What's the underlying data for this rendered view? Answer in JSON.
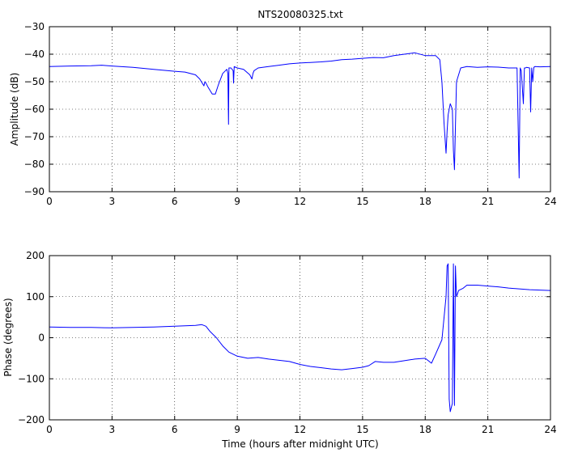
{
  "figure_title": "NTS20080325.txt",
  "line_color": "#0000ff",
  "chart_data": [
    {
      "type": "line",
      "title": "NTS20080325.txt",
      "xlabel": "",
      "ylabel": "Amplitude (dB)",
      "xlim": [
        0,
        24
      ],
      "ylim": [
        -90,
        -30
      ],
      "xticks": [
        0,
        3,
        6,
        9,
        12,
        15,
        18,
        21,
        24
      ],
      "yticks": [
        -90,
        -80,
        -70,
        -60,
        -50,
        -40,
        -30
      ],
      "grid": true,
      "series": [
        {
          "x": [
            0,
            1,
            2,
            2.5,
            3,
            4,
            5,
            6,
            6.5,
            7,
            7.2,
            7.4,
            7.45,
            7.5,
            7.6,
            7.8,
            7.95,
            8.1,
            8.3,
            8.5,
            8.55,
            8.58,
            8.6,
            8.7,
            8.8,
            8.82,
            8.85,
            9.0,
            9.3,
            9.6,
            9.7,
            9.75,
            9.8,
            10,
            10.5,
            11,
            11.5,
            12,
            12.5,
            13,
            13.5,
            14,
            14.5,
            15,
            15.5,
            16,
            16.5,
            17,
            17.5,
            18,
            18.5,
            18.7,
            18.8,
            18.9,
            19.0,
            19.05,
            19.1,
            19.2,
            19.3,
            19.35,
            19.4,
            19.45,
            19.5,
            19.7,
            20,
            20.5,
            21,
            21.5,
            22,
            22.4,
            22.5,
            22.55,
            22.6,
            22.7,
            22.75,
            22.8,
            22.85,
            23.0,
            23.05,
            23.1,
            23.15,
            23.2,
            23.25,
            23.5,
            24
          ],
          "y": [
            -44.5,
            -44.3,
            -44.2,
            -44.0,
            -44.3,
            -44.8,
            -45.5,
            -46.2,
            -46.5,
            -47.5,
            -49,
            -51.5,
            -50,
            -50.5,
            -52,
            -54.5,
            -54.5,
            -51,
            -47,
            -45.5,
            -47,
            -65.5,
            -45,
            -45,
            -46,
            -50.5,
            -44.5,
            -45,
            -45.5,
            -47.5,
            -49,
            -47,
            -46,
            -45,
            -44.5,
            -44,
            -43.5,
            -43.2,
            -43,
            -42.8,
            -42.5,
            -42,
            -41.8,
            -41.5,
            -41.2,
            -41.3,
            -40.5,
            -40,
            -39.5,
            -40.5,
            -40.5,
            -42,
            -50,
            -65,
            -76,
            -68,
            -62,
            -58,
            -60,
            -75,
            -82,
            -66,
            -50,
            -45,
            -44.5,
            -44.8,
            -44.6,
            -44.7,
            -45,
            -45,
            -85,
            -45,
            -46,
            -58,
            -45,
            -45,
            -44.8,
            -45,
            -61,
            -45,
            -50,
            -44.8,
            -44.5,
            -44.6,
            -44.5
          ]
        }
      ]
    },
    {
      "type": "line",
      "title": "",
      "xlabel": "Time (hours after midnight UTC)",
      "ylabel": "Phase (degrees)",
      "xlim": [
        0,
        24
      ],
      "ylim": [
        -200,
        200
      ],
      "xticks": [
        0,
        3,
        6,
        9,
        12,
        15,
        18,
        21,
        24
      ],
      "yticks": [
        -200,
        -100,
        0,
        100,
        200
      ],
      "grid": true,
      "series": [
        {
          "x": [
            0,
            1,
            2,
            3,
            4,
            5,
            6,
            7,
            7.3,
            7.5,
            7.7,
            8.0,
            8.3,
            8.6,
            9.0,
            9.5,
            10,
            10.5,
            11,
            11.5,
            12,
            12.5,
            13,
            13.5,
            14,
            14.5,
            15,
            15.3,
            15.6,
            16,
            16.5,
            17,
            17.5,
            18,
            18.3,
            18.5,
            18.8,
            19.0,
            19.05,
            19.1,
            19.15,
            19.2,
            19.25,
            19.3,
            19.35,
            19.4,
            19.45,
            19.5,
            19.6,
            19.8,
            20.0,
            20.5,
            21,
            21.5,
            22,
            22.5,
            23,
            23.5,
            24
          ],
          "y": [
            26,
            25,
            25,
            24,
            25,
            26,
            28,
            30,
            32,
            28,
            15,
            0,
            -20,
            -35,
            -45,
            -50,
            -48,
            -52,
            -55,
            -58,
            -65,
            -70,
            -73,
            -76,
            -78,
            -75,
            -72,
            -68,
            -58,
            -60,
            -60,
            -56,
            -52,
            -50,
            -62,
            -40,
            -5,
            100,
            175,
            180,
            -150,
            -180,
            -170,
            -160,
            180,
            -165,
            175,
            100,
            115,
            120,
            128,
            128,
            126,
            124,
            121,
            119,
            117,
            116,
            115
          ]
        }
      ]
    }
  ]
}
